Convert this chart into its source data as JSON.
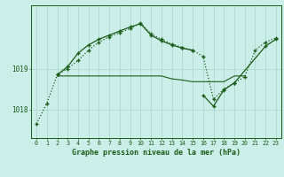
{
  "title": "Graphe pression niveau de la mer (hPa)",
  "bg_color": "#cceee8",
  "line_color": "#1a5c1a",
  "grid_color": "#aad4cc",
  "x_values": [
    0,
    1,
    2,
    3,
    4,
    5,
    6,
    7,
    8,
    9,
    10,
    11,
    12,
    13,
    14,
    15,
    16,
    17,
    18,
    19,
    20,
    21,
    22,
    23
  ],
  "series1_dotted": [
    1017.65,
    1018.15,
    1018.85,
    1019.0,
    1019.2,
    1019.45,
    1019.65,
    1019.78,
    1019.88,
    1019.98,
    1020.12,
    1019.85,
    1019.72,
    1019.6,
    1019.52,
    1019.45,
    1019.3,
    1018.25,
    1018.5,
    1018.65,
    1018.8,
    1019.45,
    1019.65,
    1019.75
  ],
  "series2_flat": [
    null,
    null,
    1018.82,
    1018.82,
    1018.82,
    1018.82,
    1018.82,
    1018.82,
    1018.82,
    1018.82,
    1018.82,
    1018.82,
    1018.82,
    1018.75,
    1018.72,
    1018.68,
    1018.68,
    1018.68,
    1018.68,
    1018.82,
    1018.82,
    null,
    null,
    null
  ],
  "series3_upper": [
    null,
    null,
    1018.85,
    1019.05,
    1019.38,
    1019.58,
    1019.72,
    1019.82,
    1019.92,
    1020.02,
    1020.1,
    1019.82,
    1019.68,
    1019.58,
    1019.5,
    1019.45,
    null,
    null,
    null,
    null,
    null,
    null,
    null,
    null
  ],
  "series4_dip": [
    null,
    null,
    null,
    null,
    null,
    null,
    null,
    null,
    null,
    null,
    null,
    null,
    null,
    null,
    null,
    null,
    1018.35,
    1018.08,
    1018.48,
    1018.65,
    null,
    null,
    1019.55,
    1019.72
  ],
  "yticks": [
    1018,
    1019
  ],
  "ylim": [
    1017.3,
    1020.55
  ],
  "xlim": [
    -0.5,
    23.5
  ]
}
